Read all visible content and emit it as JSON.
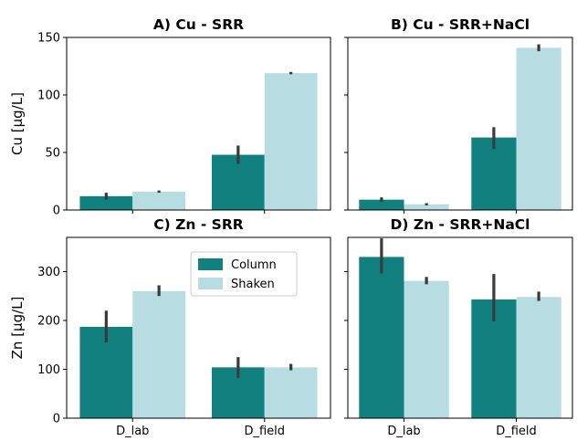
{
  "colors": {
    "column": "#138080",
    "shaken": "#b7dde2",
    "error": "#3a3a3a"
  },
  "legend": {
    "items": [
      "Column",
      "Shaken"
    ],
    "panel": 2,
    "placement": "upper-right"
  },
  "chart_data": [
    {
      "type": "bar",
      "title": "A) Cu - SRR",
      "categories": [
        "D_lab",
        "D_field"
      ],
      "ylabel": "Cu [µg/L]",
      "ylim": [
        0,
        150
      ],
      "yticks": [
        0,
        50,
        100,
        150
      ],
      "show_xticklabels": false,
      "series": [
        {
          "name": "Column",
          "values": [
            12,
            48
          ],
          "err_low": [
            9,
            40
          ],
          "err_high": [
            15,
            56
          ]
        },
        {
          "name": "Shaken",
          "values": [
            16,
            119
          ],
          "err_low": [
            15,
            118
          ],
          "err_high": [
            17,
            120
          ]
        }
      ]
    },
    {
      "type": "bar",
      "title": "B) Cu - SRR+NaCl",
      "categories": [
        "D_lab",
        "D_field"
      ],
      "ylabel": "",
      "ylim": [
        0,
        150
      ],
      "yticks": [
        0,
        50,
        100,
        150
      ],
      "show_xticklabels": false,
      "series": [
        {
          "name": "Column",
          "values": [
            9,
            63
          ],
          "err_low": [
            7,
            53
          ],
          "err_high": [
            11,
            72
          ]
        },
        {
          "name": "Shaken",
          "values": [
            5,
            141
          ],
          "err_low": [
            4,
            138
          ],
          "err_high": [
            6,
            144
          ]
        }
      ]
    },
    {
      "type": "bar",
      "title": "C) Zn - SRR",
      "categories": [
        "D_lab",
        "D_field"
      ],
      "ylabel": "Zn [µg/L]",
      "ylim": [
        0,
        370
      ],
      "yticks": [
        0,
        100,
        200,
        300
      ],
      "show_xticklabels": true,
      "series": [
        {
          "name": "Column",
          "values": [
            187,
            104
          ],
          "err_low": [
            155,
            82
          ],
          "err_high": [
            220,
            125
          ]
        },
        {
          "name": "Shaken",
          "values": [
            260,
            104
          ],
          "err_low": [
            250,
            98
          ],
          "err_high": [
            272,
            111
          ]
        }
      ]
    },
    {
      "type": "bar",
      "title": "D) Zn - SRR+NaCl",
      "categories": [
        "D_lab",
        "D_field"
      ],
      "ylabel": "",
      "ylim": [
        0,
        370
      ],
      "yticks": [
        0,
        100,
        200,
        300
      ],
      "show_xticklabels": true,
      "series": [
        {
          "name": "Column",
          "values": [
            330,
            243
          ],
          "err_low": [
            296,
            198
          ],
          "err_high": [
            368,
            295
          ]
        },
        {
          "name": "Shaken",
          "values": [
            281,
            248
          ],
          "err_low": [
            274,
            240
          ],
          "err_high": [
            289,
            259
          ]
        }
      ]
    }
  ]
}
